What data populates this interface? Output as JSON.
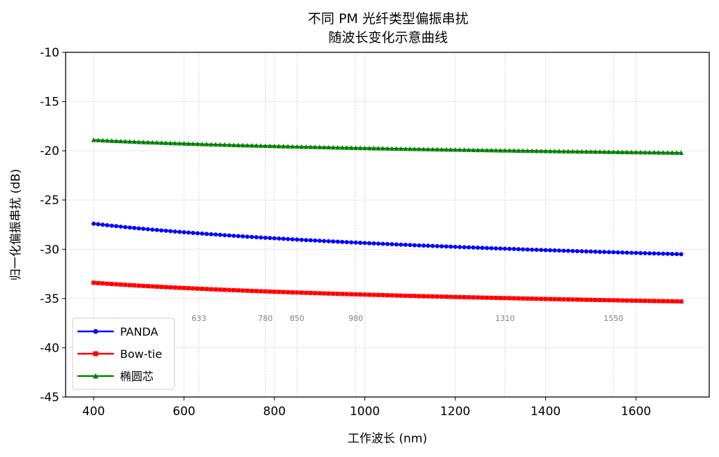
{
  "chart_data": {
    "type": "line",
    "title": [
      "不同 PM 光纤类型偏振串扰",
      "随波长变化示意曲线"
    ],
    "xlabel": "工作波长 (nm)",
    "ylabel": "归一化偏振串扰 (dB)",
    "xlim": [
      338,
      1762
    ],
    "ylim": [
      -45,
      -10
    ],
    "xticks": [
      400,
      600,
      800,
      1000,
      1200,
      1400,
      1600
    ],
    "yticks": [
      -10,
      -15,
      -20,
      -25,
      -30,
      -35,
      -40,
      -45
    ],
    "grid": true,
    "legend_position": "lower-left",
    "reference_wavelengths": [
      {
        "x": 633,
        "label": "633"
      },
      {
        "x": 780,
        "label": "780"
      },
      {
        "x": 850,
        "label": "850"
      },
      {
        "x": 980,
        "label": "980"
      },
      {
        "x": 1310,
        "label": "1310"
      },
      {
        "x": 1550,
        "label": "1550"
      }
    ],
    "series": [
      {
        "name": "PANDA",
        "color": "#0000ff",
        "marker": "circle",
        "x_range": [
          400,
          1700
        ],
        "y_start": -27.4,
        "y_end": -30.5
      },
      {
        "name": "Bow-tie",
        "color": "#ff0000",
        "marker": "square",
        "x_range": [
          400,
          1700
        ],
        "y_start": -33.4,
        "y_end": -35.3
      },
      {
        "name": "椭圆芯",
        "color": "#008000",
        "marker": "triangle",
        "x_range": [
          400,
          1700
        ],
        "y_start": -18.9,
        "y_end": -20.2
      }
    ]
  }
}
